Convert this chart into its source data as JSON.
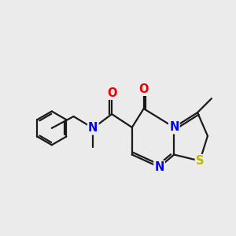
{
  "bg_color": "#ebebeb",
  "atom_colors": {
    "C": "#1a1a1a",
    "N": "#0000ee",
    "O": "#ee0000",
    "S": "#bbbb00"
  },
  "bond_color": "#1a1a1a",
  "line_width": 1.6,
  "font_size": 10.5
}
